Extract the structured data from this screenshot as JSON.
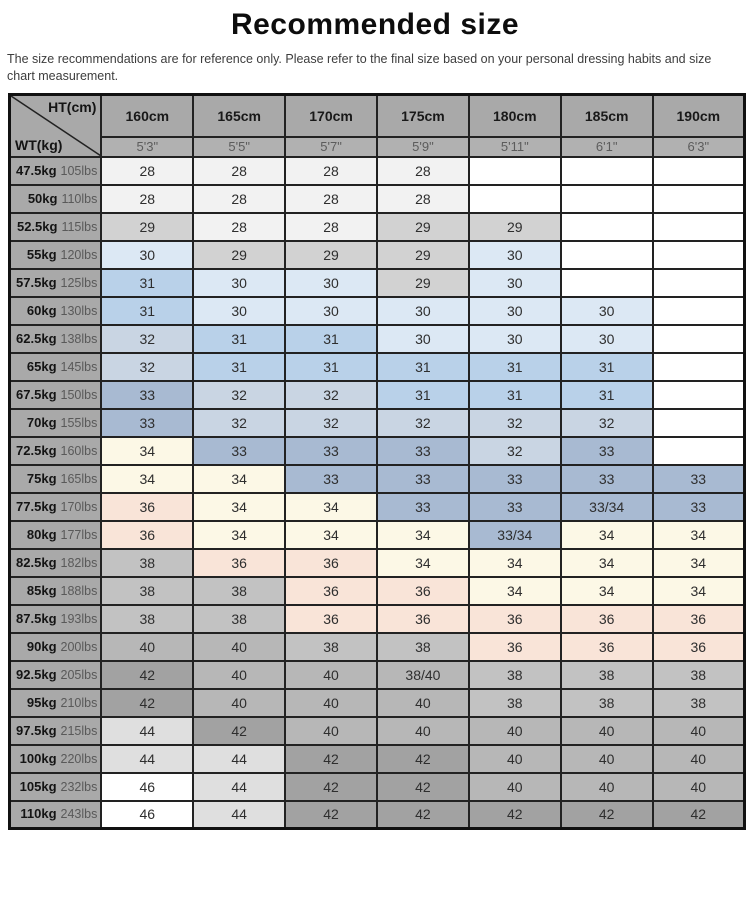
{
  "page": {
    "subtitle": "The size recommendations are for reference only. Please refer to the final size based on your personal dressing habits and size chart measurement."
  },
  "chart_data": {
    "type": "table",
    "title": "Recommended size",
    "corner": {
      "top_label": "HT(cm)",
      "bottom_label": "WT(kg)"
    },
    "columns_cm": [
      "160cm",
      "165cm",
      "170cm",
      "175cm",
      "180cm",
      "185cm",
      "190cm"
    ],
    "columns_ft": [
      "5'3\"",
      "5'5\"",
      "5'7\"",
      "5'9\"",
      "5'11\"",
      "6'1\"",
      "6'3\""
    ],
    "rows": [
      {
        "kg": "47.5kg",
        "lbs": "105lbs",
        "sizes": [
          "28",
          "28",
          "28",
          "28",
          "",
          "",
          ""
        ]
      },
      {
        "kg": "50kg",
        "lbs": "110lbs",
        "sizes": [
          "28",
          "28",
          "28",
          "28",
          "",
          "",
          ""
        ]
      },
      {
        "kg": "52.5kg",
        "lbs": "115lbs",
        "sizes": [
          "29",
          "28",
          "28",
          "29",
          "29",
          "",
          ""
        ]
      },
      {
        "kg": "55kg",
        "lbs": "120lbs",
        "sizes": [
          "30",
          "29",
          "29",
          "29",
          "30",
          "",
          ""
        ]
      },
      {
        "kg": "57.5kg",
        "lbs": "125lbs",
        "sizes": [
          "31",
          "30",
          "30",
          "29",
          "30",
          "",
          ""
        ]
      },
      {
        "kg": "60kg",
        "lbs": "130lbs",
        "sizes": [
          "31",
          "30",
          "30",
          "30",
          "30",
          "30",
          ""
        ]
      },
      {
        "kg": "62.5kg",
        "lbs": "138lbs",
        "sizes": [
          "32",
          "31",
          "31",
          "30",
          "30",
          "30",
          ""
        ]
      },
      {
        "kg": "65kg",
        "lbs": "145lbs",
        "sizes": [
          "32",
          "31",
          "31",
          "31",
          "31",
          "31",
          ""
        ]
      },
      {
        "kg": "67.5kg",
        "lbs": "150lbs",
        "sizes": [
          "33",
          "32",
          "32",
          "31",
          "31",
          "31",
          ""
        ]
      },
      {
        "kg": "70kg",
        "lbs": "155lbs",
        "sizes": [
          "33",
          "32",
          "32",
          "32",
          "32",
          "32",
          ""
        ]
      },
      {
        "kg": "72.5kg",
        "lbs": "160lbs",
        "sizes": [
          "34",
          "33",
          "33",
          "33",
          "32",
          "33",
          ""
        ]
      },
      {
        "kg": "75kg",
        "lbs": "165lbs",
        "sizes": [
          "34",
          "34",
          "33",
          "33",
          "33",
          "33",
          "33"
        ]
      },
      {
        "kg": "77.5kg",
        "lbs": "170lbs",
        "sizes": [
          "36",
          "34",
          "34",
          "33",
          "33",
          "33/34",
          "33"
        ]
      },
      {
        "kg": "80kg",
        "lbs": "177lbs",
        "sizes": [
          "36",
          "34",
          "34",
          "34",
          "33/34",
          "34",
          "34"
        ]
      },
      {
        "kg": "82.5kg",
        "lbs": "182lbs",
        "sizes": [
          "38",
          "36",
          "36",
          "34",
          "34",
          "34",
          "34"
        ]
      },
      {
        "kg": "85kg",
        "lbs": "188lbs",
        "sizes": [
          "38",
          "38",
          "36",
          "36",
          "34",
          "34",
          "34"
        ]
      },
      {
        "kg": "87.5kg",
        "lbs": "193lbs",
        "sizes": [
          "38",
          "38",
          "36",
          "36",
          "36",
          "36",
          "36"
        ]
      },
      {
        "kg": "90kg",
        "lbs": "200lbs",
        "sizes": [
          "40",
          "40",
          "38",
          "38",
          "36",
          "36",
          "36"
        ]
      },
      {
        "kg": "92.5kg",
        "lbs": "205lbs",
        "sizes": [
          "42",
          "40",
          "40",
          "38/40",
          "38",
          "38",
          "38"
        ]
      },
      {
        "kg": "95kg",
        "lbs": "210lbs",
        "sizes": [
          "42",
          "40",
          "40",
          "40",
          "38",
          "38",
          "38"
        ]
      },
      {
        "kg": "97.5kg",
        "lbs": "215lbs",
        "sizes": [
          "44",
          "42",
          "40",
          "40",
          "40",
          "40",
          "40"
        ]
      },
      {
        "kg": "100kg",
        "lbs": "220lbs",
        "sizes": [
          "44",
          "44",
          "42",
          "42",
          "40",
          "40",
          "40"
        ]
      },
      {
        "kg": "105kg",
        "lbs": "232lbs",
        "sizes": [
          "46",
          "44",
          "42",
          "42",
          "40",
          "40",
          "40"
        ]
      },
      {
        "kg": "110kg",
        "lbs": "243lbs",
        "sizes": [
          "46",
          "44",
          "42",
          "42",
          "42",
          "42",
          "42"
        ]
      }
    ],
    "colors": {
      "header_bg": "#a9a9a9",
      "subheader_bg": "#b1b1b1",
      "weight_col_bg": "#a9a9a9",
      "border": "#222222",
      "empty_cell": "#ffffff"
    },
    "size_colors": {
      "28": "#f2f2f2",
      "29": "#d2d2d2",
      "30": "#dce8f4",
      "31": "#b9d1e9",
      "32": "#c9d5e3",
      "33": "#a8bad2",
      "33/34": "#a8bad2",
      "34": "#fcf8e6",
      "36": "#f9e4d8",
      "38": "#c2c2c2",
      "38/40": "#b7b7b7",
      "40": "#b7b7b7",
      "42": "#a2a2a2",
      "44": "#dfdfdf",
      "46": "#ffffff"
    },
    "layout_hints": {
      "grid": true,
      "legend": "none"
    }
  }
}
